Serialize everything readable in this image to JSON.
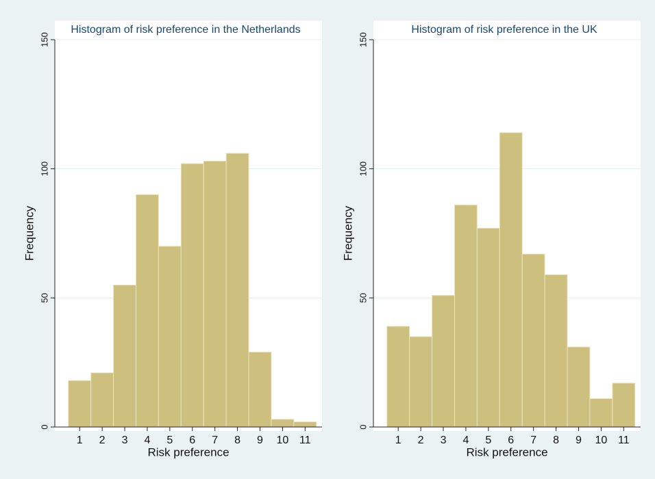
{
  "chart_data": [
    {
      "type": "histogram",
      "title": "Histogram of risk preference in the Netherlands",
      "x_label": "Risk preference",
      "y_label": "Frequency",
      "bins": [
        0.5,
        1.5,
        2.5,
        3.5,
        4.5,
        5.5,
        6.5,
        7.5,
        8.5,
        9.5,
        10.5,
        11.5
      ],
      "values": [
        18,
        21,
        55,
        90,
        70,
        102,
        103,
        106,
        29,
        3,
        2
      ],
      "color": "#cdc07e",
      "xlim": [
        -0.1,
        11.75
      ],
      "xticks": [
        1,
        2,
        3,
        4,
        5,
        6,
        7,
        8,
        9,
        10,
        11
      ],
      "ylim": [
        0,
        150
      ],
      "yticks": [
        0,
        50,
        100,
        150
      ],
      "grid": true
    },
    {
      "type": "histogram",
      "title": "Histogram of risk preference in the UK",
      "x_label": "Risk preference",
      "y_label": "Frequency",
      "bins": [
        0.5,
        1.5,
        2.5,
        3.5,
        4.5,
        5.5,
        6.5,
        7.5,
        8.5,
        9.5,
        10.5,
        11.5
      ],
      "values": [
        39,
        35,
        51,
        86,
        77,
        114,
        67,
        59,
        31,
        11,
        17
      ],
      "color": "#cdc07e",
      "xlim": [
        -0.1,
        11.75
      ],
      "xticks": [
        1,
        2,
        3,
        4,
        5,
        6,
        7,
        8,
        9,
        10,
        11
      ],
      "ylim": [
        0,
        150
      ],
      "yticks": [
        0,
        50,
        100,
        150
      ],
      "grid": true
    }
  ]
}
